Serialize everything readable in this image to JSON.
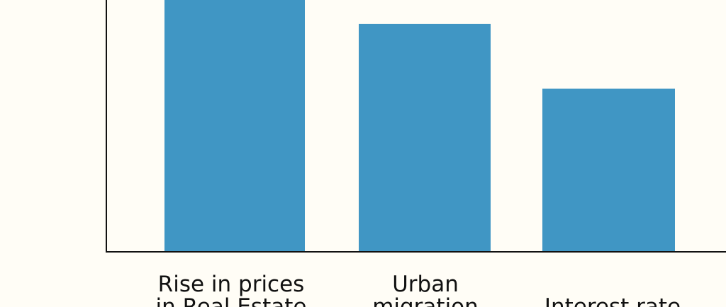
{
  "chart_data": {
    "type": "bar",
    "categories": [
      [
        "Rise in prices",
        "in Real Estate"
      ],
      [
        "Urban",
        "migration"
      ],
      [
        "Interest rate"
      ]
    ],
    "values": [
      105,
      95,
      68
    ],
    "ylim": [
      0,
      105
    ],
    "grid": false,
    "colors": {
      "bar": "#4096c4",
      "axis": "#111111",
      "background": "#fffdf6"
    }
  }
}
